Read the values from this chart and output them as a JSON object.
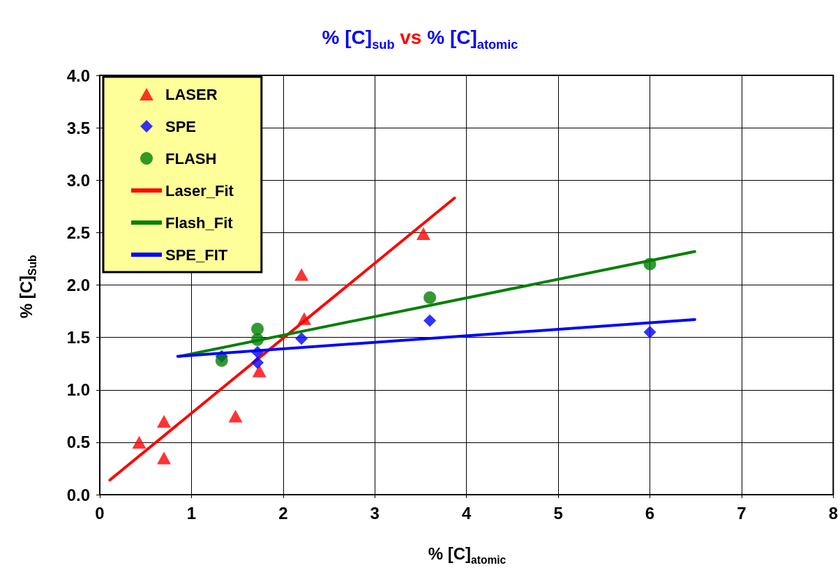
{
  "chart_data": {
    "type": "scatter",
    "title": "% [C]$_{sub}$ vs % [C]$_{atomic}$",
    "xlabel": "% [C]$_{atomic}$",
    "ylabel": "% [C]$_{Sub}$",
    "xlim": [
      0,
      8
    ],
    "xticks": [
      0,
      1,
      2,
      3,
      4,
      5,
      6,
      7,
      8
    ],
    "ylim": [
      0,
      4
    ],
    "yticks": [
      {
        "value": 0,
        "label": "0.0"
      },
      0.5,
      {
        "value": 1,
        "label": "1.0"
      },
      1.5,
      {
        "value": 2,
        "label": "2.0"
      },
      2.5,
      {
        "value": 3,
        "label": "3.0"
      },
      3.5,
      {
        "value": 4,
        "label": "4.0"
      }
    ],
    "grid": true,
    "legend": "top left",
    "series": [
      {
        "name": "LASER",
        "marker": "triangle",
        "color": "#ff0000",
        "x": [
          0.43,
          0.7,
          0.7,
          1.48,
          1.74,
          2.2,
          2.23,
          3.53
        ],
        "values": [
          0.5,
          0.7,
          0.35,
          0.75,
          1.18,
          2.1,
          1.68,
          2.49
        ]
      },
      {
        "name": "SPE",
        "marker": "diamond",
        "color": "#0000ff",
        "x": [
          1.33,
          1.72,
          1.72,
          2.2,
          3.6,
          6.0
        ],
        "values": [
          1.32,
          1.26,
          1.36,
          1.49,
          1.66,
          1.55
        ]
      },
      {
        "name": "FLASH",
        "marker": "circle",
        "color": "#008000",
        "x": [
          1.33,
          1.72,
          1.72,
          3.6,
          6.0
        ],
        "values": [
          1.28,
          1.58,
          1.48,
          1.88,
          2.2
        ]
      },
      {
        "name": "Laser_Fit",
        "type": "line",
        "marker": "none",
        "color": "#ff0000",
        "x": [
          0.11,
          3.87
        ],
        "values": [
          0.14,
          2.83
        ]
      },
      {
        "name": "Flash_Fit",
        "type": "line",
        "marker": "none",
        "color": "#008000",
        "x": [
          0.87,
          6.49
        ],
        "values": [
          1.32,
          2.32
        ]
      },
      {
        "name": "SPE_FIT",
        "type": "line",
        "marker": "none",
        "color": "#0000ff",
        "x": [
          0.85,
          6.49
        ],
        "values": [
          1.32,
          1.67
        ]
      }
    ]
  }
}
